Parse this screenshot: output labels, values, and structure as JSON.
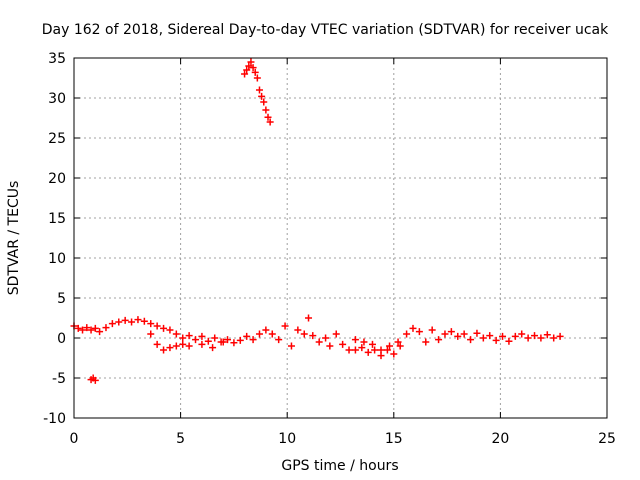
{
  "chart_data": {
    "type": "scatter",
    "title": "Day 162 of 2018, Sidereal Day-to-day VTEC variation (SDTVAR) for receiver ucak",
    "xlabel": "GPS time / hours",
    "ylabel": "SDTVAR / TECUs",
    "xlim": [
      0,
      25
    ],
    "ylim": [
      -10,
      35
    ],
    "xticks": [
      0,
      5,
      10,
      15,
      20,
      25
    ],
    "yticks": [
      -10,
      -5,
      0,
      5,
      10,
      15,
      20,
      25,
      30,
      35
    ],
    "xtick_labels": [
      "0",
      "5",
      "10",
      "15",
      "20",
      "25"
    ],
    "ytick_labels": [
      "-10",
      "-5",
      "0",
      "5",
      "10",
      "15",
      "20",
      "25",
      "30",
      "35"
    ],
    "grid": true,
    "marker": "+",
    "color": "#ff0000",
    "series": [
      {
        "name": "SDTVAR",
        "x": [
          0.0,
          0.2,
          0.4,
          0.6,
          0.8,
          1.0,
          1.2,
          1.5,
          1.8,
          2.1,
          2.4,
          2.7,
          3.0,
          3.3,
          3.6,
          3.9,
          4.2,
          4.5,
          4.8,
          5.1,
          5.4,
          5.7,
          6.0,
          6.3,
          6.6,
          6.9,
          7.2,
          7.5,
          7.8,
          8.1,
          8.4,
          8.7,
          9.0,
          9.3,
          9.6,
          9.9,
          10.2,
          10.5,
          10.8,
          11.0,
          11.2,
          11.5,
          11.8,
          12.0,
          12.3,
          12.6,
          12.9,
          13.2,
          13.5,
          13.8,
          14.1,
          14.4,
          14.7,
          15.0,
          15.3,
          15.6,
          15.9,
          16.2,
          16.5,
          16.8,
          17.1,
          17.4,
          17.7,
          18.0,
          18.3,
          18.6,
          18.9,
          19.2,
          19.5,
          19.8,
          20.1,
          20.4,
          20.7,
          21.0,
          21.3,
          21.6,
          21.9,
          22.2,
          22.5,
          22.8,
          3.6,
          3.9,
          4.2,
          4.5,
          4.8,
          5.1,
          5.4,
          6.0,
          6.5,
          7.0,
          13.2,
          13.6,
          14.0,
          14.4,
          14.8,
          15.2,
          0.8,
          0.9,
          1.0,
          8.0,
          8.1,
          8.2,
          8.3,
          8.4,
          8.5,
          8.6,
          8.7,
          8.8,
          8.9,
          9.0,
          9.1,
          9.2
        ],
        "y": [
          1.5,
          1.2,
          1.0,
          1.3,
          1.0,
          1.2,
          0.8,
          1.3,
          1.8,
          2.0,
          2.2,
          2.0,
          2.3,
          2.1,
          1.8,
          1.5,
          1.2,
          1.0,
          0.5,
          0.0,
          0.3,
          -0.2,
          0.2,
          -0.4,
          0.0,
          -0.5,
          -0.2,
          -0.6,
          -0.3,
          0.2,
          -0.2,
          0.5,
          1.0,
          0.5,
          -0.2,
          1.5,
          -1.0,
          1.0,
          0.5,
          2.5,
          0.3,
          -0.5,
          0.0,
          -1.0,
          0.5,
          -0.8,
          -1.5,
          -0.2,
          -1.2,
          -1.8,
          -1.5,
          -2.2,
          -1.5,
          -2.0,
          -1.0,
          0.5,
          1.2,
          0.8,
          -0.5,
          1.0,
          -0.2,
          0.5,
          0.8,
          0.2,
          0.5,
          -0.2,
          0.6,
          0.0,
          0.3,
          -0.3,
          0.2,
          -0.4,
          0.2,
          0.5,
          0.0,
          0.3,
          0.0,
          0.4,
          0.0,
          0.2,
          0.5,
          -0.8,
          -1.5,
          -1.2,
          -1.0,
          -0.8,
          -1.0,
          -0.8,
          -1.2,
          -0.5,
          -1.5,
          -0.5,
          -0.8,
          -1.5,
          -1.0,
          -0.5,
          -5.2,
          -5.0,
          -5.3,
          33.0,
          33.5,
          34.0,
          34.5,
          33.8,
          33.2,
          32.5,
          31.0,
          30.2,
          29.5,
          28.5,
          27.6,
          27.0
        ]
      }
    ]
  }
}
